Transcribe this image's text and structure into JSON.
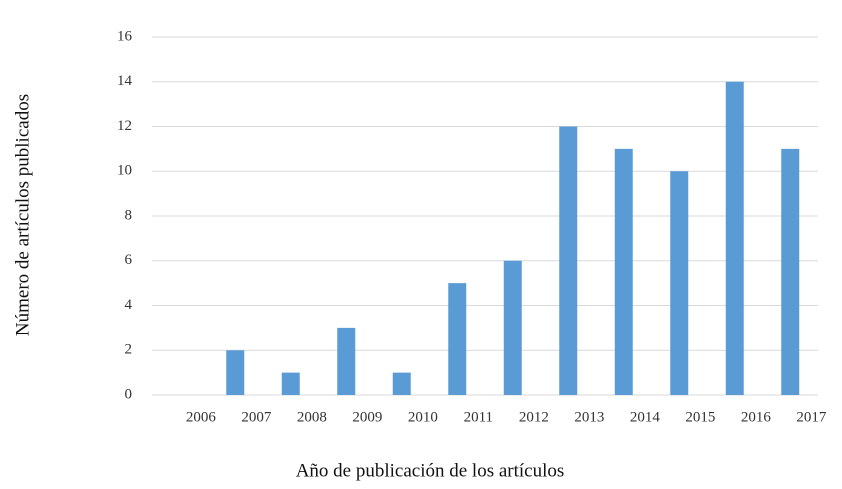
{
  "chart_data": {
    "type": "bar",
    "x_label": "Año de publicación de los artículos",
    "y_label": "Número de artículos publicados",
    "categories": [
      "2006",
      "2007",
      "2008",
      "2009",
      "2010",
      "2011",
      "2012",
      "2013",
      "2014",
      "2015",
      "2016",
      "2017"
    ],
    "values": [
      0,
      2,
      1,
      3,
      1,
      5,
      6,
      12,
      11,
      10,
      14,
      11
    ],
    "color": "#5b9bd5",
    "ylim": [
      0,
      16
    ],
    "yticks": [
      0,
      2,
      4,
      6,
      8,
      10,
      12,
      14,
      16
    ],
    "grid": true
  }
}
